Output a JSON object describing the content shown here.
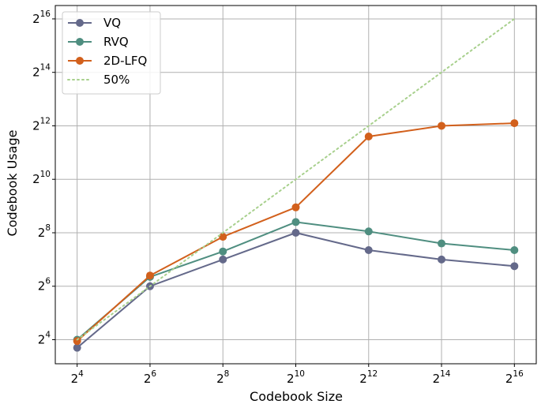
{
  "chart_data": {
    "type": "line",
    "xlabel": "Codebook Size",
    "ylabel": "Codebook Usage",
    "x_scale": "log2",
    "y_scale": "log2",
    "x": [
      4,
      6,
      8,
      10,
      12,
      14,
      16
    ],
    "x_tick_labels": [
      {
        "base": "2",
        "exp": "4"
      },
      {
        "base": "2",
        "exp": "6"
      },
      {
        "base": "2",
        "exp": "8"
      },
      {
        "base": "2",
        "exp": "10"
      },
      {
        "base": "2",
        "exp": "12"
      },
      {
        "base": "2",
        "exp": "14"
      },
      {
        "base": "2",
        "exp": "16"
      }
    ],
    "y_ticks": [
      4,
      6,
      8,
      10,
      12,
      14,
      16
    ],
    "y_tick_labels": [
      {
        "base": "2",
        "exp": "4"
      },
      {
        "base": "2",
        "exp": "6"
      },
      {
        "base": "2",
        "exp": "8"
      },
      {
        "base": "2",
        "exp": "10"
      },
      {
        "base": "2",
        "exp": "12"
      },
      {
        "base": "2",
        "exp": "14"
      },
      {
        "base": "2",
        "exp": "16"
      }
    ],
    "xlim": [
      3.4,
      16.6
    ],
    "ylim": [
      3.1,
      16.5
    ],
    "grid": true,
    "legend_position": "top-left",
    "series": [
      {
        "name": "VQ",
        "color": "#64698a",
        "style": "solid",
        "marker": true,
        "values": [
          3.7,
          6.0,
          7.0,
          8.0,
          7.35,
          7.0,
          6.75
        ]
      },
      {
        "name": "RVQ",
        "color": "#4f8e80",
        "style": "solid",
        "marker": true,
        "values": [
          4.0,
          6.35,
          7.3,
          8.4,
          8.05,
          7.6,
          7.35
        ]
      },
      {
        "name": "2D-LFQ",
        "color": "#d2601c",
        "style": "solid",
        "marker": true,
        "values": [
          3.95,
          6.4,
          7.85,
          8.95,
          11.6,
          12.0,
          12.1
        ]
      },
      {
        "name": "50%",
        "color": "#a8d08d",
        "style": "dotted",
        "marker": false,
        "values": [
          4,
          6,
          8,
          10,
          12,
          14,
          16
        ]
      }
    ]
  }
}
